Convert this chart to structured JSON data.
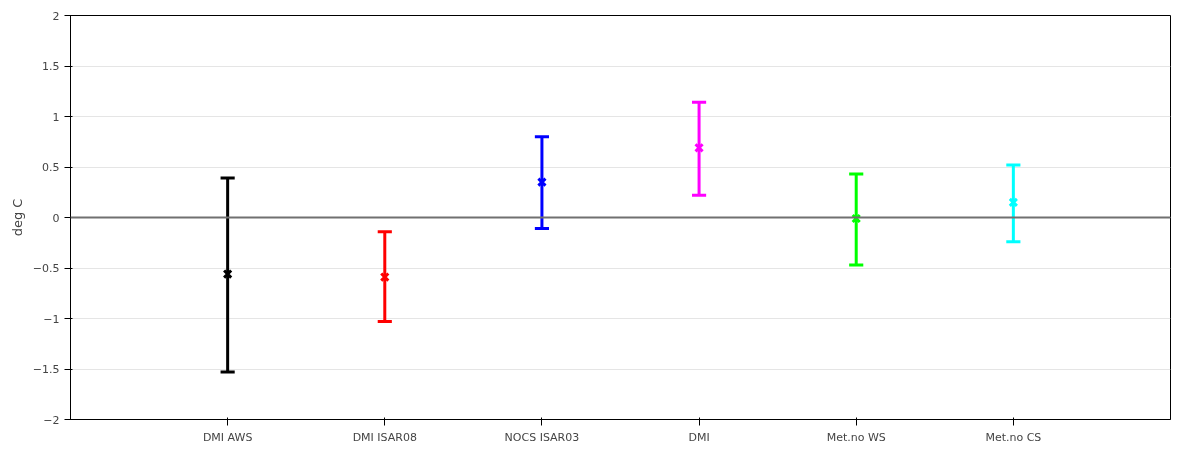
{
  "chart_data": {
    "type": "scatter",
    "ylabel": "deg C",
    "categories": [
      "DMI AWS",
      "DMI ISAR08",
      "NOCS ISAR03",
      "DMI",
      "Met.no WS",
      "Met.no CS"
    ],
    "values": [
      -0.56,
      -0.59,
      0.35,
      0.69,
      -0.01,
      0.15
    ],
    "errors": [
      [
        -1.53,
        0.39
      ],
      [
        -1.03,
        -0.14
      ],
      [
        -0.11,
        0.8
      ],
      [
        0.22,
        1.14
      ],
      [
        -0.47,
        0.43
      ],
      [
        -0.24,
        0.52
      ]
    ],
    "colors": [
      "#000000",
      "#ff0000",
      "#0000ff",
      "#ff00ff",
      "#00ff00",
      "#00ffff"
    ],
    "marker": "cross",
    "ylim": [
      -2,
      2
    ],
    "yticks": [
      -2,
      -1.5,
      -1,
      -0.5,
      0,
      0.5,
      1,
      1.5,
      2
    ],
    "grid": "y",
    "ref_lines": [
      {
        "axis": "y",
        "value": 0,
        "label": null,
        "color": "#707070"
      }
    ]
  }
}
